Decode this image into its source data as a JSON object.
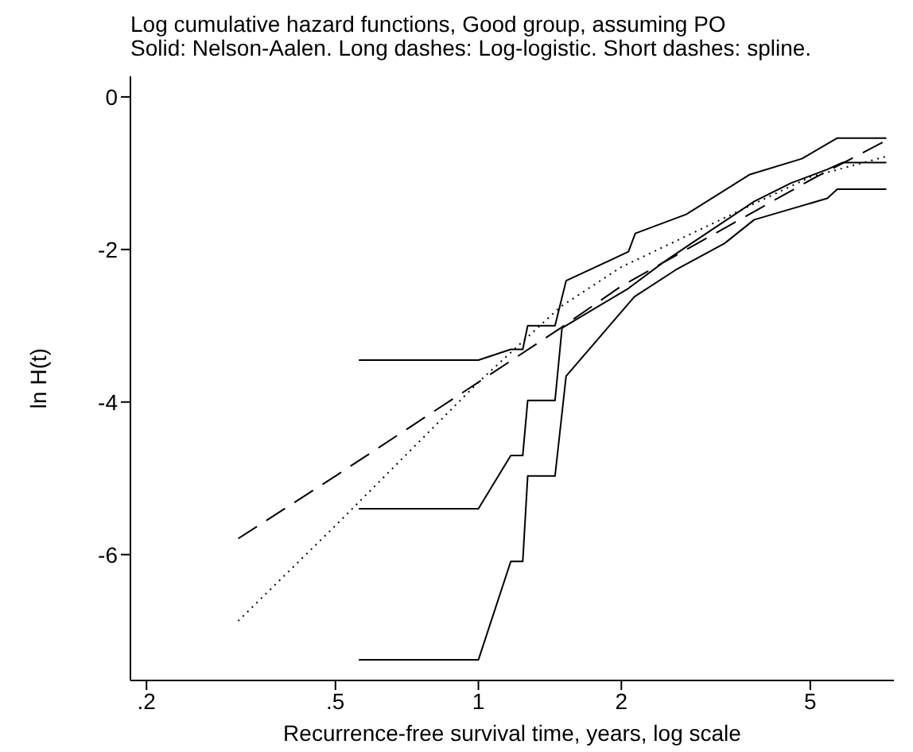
{
  "chart_data": {
    "type": "line",
    "title": "Log cumulative hazard functions, Good group, assuming PO",
    "subtitle": "Solid: Nelson-Aalen. Long dashes: Log-logistic. Short dashes: spline.",
    "xlabel": "Recurrence-free survival time, years, log scale",
    "ylabel": "ln H(t)",
    "log": "x",
    "grid": false,
    "marker": "none",
    "xlim": [
      0.185,
      7.5
    ],
    "xticks": [
      {
        "value": 0.2,
        "label": ".2"
      },
      {
        "value": 0.5,
        "label": ".5"
      },
      1,
      2,
      5
    ],
    "ylim": [
      -7.65,
      0.27
    ],
    "yticks": [
      0,
      -2,
      -4,
      -6
    ],
    "series": [
      {
        "color": "#000000",
        "line_style": "solid",
        "x": [
          0.56,
          1.0,
          1.17,
          1.24,
          1.27,
          1.45,
          1.5,
          2.07,
          2.45,
          2.81,
          3.81,
          4.55,
          5.43,
          5.85,
          7.23
        ],
        "values": [
          -5.4,
          -5.4,
          -4.7,
          -4.7,
          -3.98,
          -3.98,
          -3.03,
          -2.51,
          -2.17,
          -1.92,
          -1.37,
          -1.13,
          -0.95,
          -0.86,
          -0.86
        ]
      },
      {
        "color": "#000000",
        "line_style": "solid",
        "x": [
          0.56,
          1.0,
          1.17,
          1.24,
          1.27,
          1.45,
          1.53,
          2.07,
          2.14,
          2.74,
          3.72,
          4.8,
          5.7,
          7.23
        ],
        "values": [
          -3.45,
          -3.45,
          -3.31,
          -3.31,
          -3.0,
          -3.0,
          -2.41,
          -2.03,
          -1.79,
          -1.54,
          -1.02,
          -0.81,
          -0.54,
          -0.54
        ]
      },
      {
        "color": "#000000",
        "line_style": "solid",
        "x": [
          0.56,
          1.0,
          1.17,
          1.24,
          1.27,
          1.45,
          1.53,
          2.13,
          2.6,
          3.3,
          3.81,
          5.43,
          5.7,
          7.23
        ],
        "values": [
          -7.38,
          -7.38,
          -6.09,
          -6.09,
          -4.97,
          -4.97,
          -3.66,
          -2.62,
          -2.27,
          -1.92,
          -1.61,
          -1.33,
          -1.21,
          -1.21
        ]
      },
      {
        "color": "#000000",
        "line_style": "dashed",
        "x": [
          0.312,
          0.5,
          1.0,
          1.49,
          2.0,
          5.0,
          7.23
        ],
        "values": [
          -5.79,
          -4.97,
          -3.74,
          -3.03,
          -2.48,
          -1.09,
          -0.57
        ]
      },
      {
        "color": "#000000",
        "line_style": "dotted",
        "x": [
          0.312,
          0.5,
          1.0,
          1.49,
          2.0,
          5.0,
          7.23
        ],
        "values": [
          -6.87,
          -5.62,
          -3.74,
          -2.75,
          -2.23,
          -1.05,
          -0.78
        ]
      }
    ]
  }
}
